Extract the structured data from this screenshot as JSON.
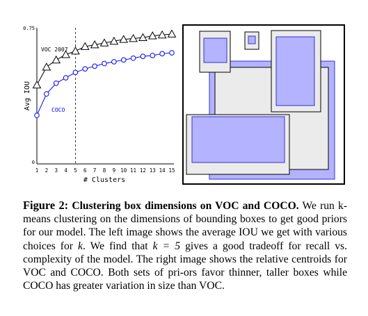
{
  "chart_data": {
    "type": "line",
    "x": [
      1,
      2,
      3,
      4,
      5,
      6,
      7,
      8,
      9,
      10,
      11,
      12,
      13,
      14,
      15
    ],
    "xlabel": "# Clusters",
    "ylabel": "Avg IOU",
    "xlim": [
      1,
      15
    ],
    "ylim": [
      0,
      0.75
    ],
    "y_ticks": [
      "0",
      "0.75"
    ],
    "x_ticks": [
      "1",
      "2",
      "3",
      "4",
      "5",
      "6",
      "7",
      "8",
      "9",
      "10",
      "11",
      "12",
      "13",
      "14",
      "15"
    ],
    "vline_x": 5,
    "series": [
      {
        "name": "VOC 2007",
        "color": "#000000",
        "marker": "triangle",
        "values": [
          0.43,
          0.53,
          0.57,
          0.6,
          0.62,
          0.645,
          0.655,
          0.665,
          0.675,
          0.685,
          0.69,
          0.695,
          0.705,
          0.71,
          0.715
        ]
      },
      {
        "name": "COCO",
        "color": "#0000ff",
        "marker": "circle",
        "values": [
          0.26,
          0.38,
          0.44,
          0.47,
          0.5,
          0.52,
          0.535,
          0.55,
          0.56,
          0.57,
          0.58,
          0.59,
          0.595,
          0.605,
          0.61
        ]
      }
    ]
  },
  "caption": {
    "label": "Figure 2:",
    "title": "Clustering box dimensions on VOC and COCO.",
    "body_1": "We run k-means clustering on the dimensions of bounding boxes to get good priors for our model. The left image shows the average IOU we get with various choices for",
    "k1": "k",
    "body_2": ". We find that",
    "k_eq": "k = 5",
    "body_3": "gives a good tradeoff for recall vs. complexity of the model. The right image shows the relative centroids for VOC and COCO. Both sets of pri-ors favor thinner, taller boxes while COCO has greater variation in size than VOC."
  },
  "colors": {
    "voc_fill": "#ebebeb",
    "coco_fill": "#b3b3ff",
    "coco_stroke": "#3333cc"
  }
}
